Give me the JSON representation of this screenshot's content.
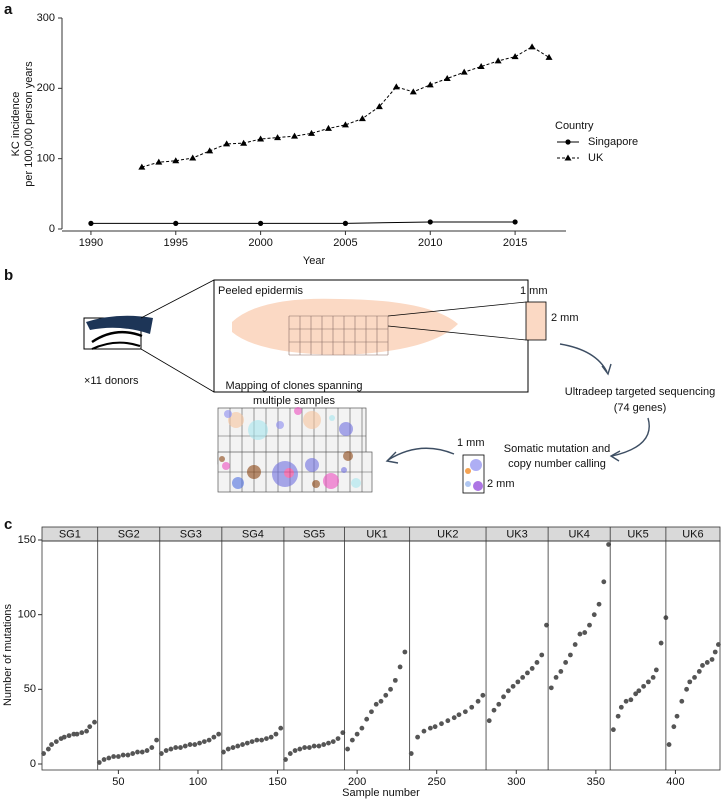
{
  "panel_labels": [
    "a",
    "b",
    "c"
  ],
  "chart_data": [
    {
      "type": "line",
      "xlabel": "Year",
      "ylabel": [
        "KC incidence",
        "per 100,000 person years"
      ],
      "xlim": [
        1988,
        2018
      ],
      "xticks": [
        1990,
        1995,
        2000,
        2005,
        2010,
        2015
      ],
      "ylim": [
        0,
        300
      ],
      "yticks": [
        0,
        100,
        200,
        300
      ],
      "legend_title": "Country",
      "legend": "right",
      "series": [
        {
          "name": "Singapore",
          "color": "#000000",
          "linestyle": "solid",
          "marker": "circle",
          "x": [
            1990,
            1995,
            2000,
            2005,
            2010,
            2015
          ],
          "values": [
            8,
            8,
            8,
            8,
            10,
            10
          ]
        },
        {
          "name": "UK",
          "color": "#000000",
          "linestyle": "dashed",
          "marker": "triangle",
          "x": [
            1993,
            1994,
            1995,
            1996,
            1997,
            1998,
            1999,
            2000,
            2001,
            2002,
            2003,
            2004,
            2005,
            2006,
            2007,
            2008,
            2009,
            2010,
            2011,
            2012,
            2013,
            2014,
            2015,
            2016,
            2017
          ],
          "values": [
            88,
            95,
            97,
            101,
            111,
            121,
            122,
            128,
            130,
            132,
            136,
            143,
            148,
            157,
            174,
            202,
            195,
            205,
            214,
            223,
            231,
            239,
            245,
            259,
            244
          ]
        }
      ]
    },
    {
      "type": "scatter",
      "xlabel": "Sample number",
      "ylabel": "Number of mutations",
      "xlim": [
        2,
        428
      ],
      "xticks": [
        50,
        100,
        150,
        200,
        250,
        300,
        350,
        400
      ],
      "ylim": [
        0,
        150
      ],
      "yticks": [
        0,
        50,
        100,
        150
      ],
      "color": "#555555",
      "facets": [
        {
          "name": "SG1",
          "xlim": [
            2,
            37
          ],
          "x": [
            3,
            6,
            8,
            11,
            14,
            16,
            19,
            22,
            24,
            27,
            30,
            32,
            35
          ],
          "values": [
            7,
            10,
            13,
            15,
            17,
            18,
            19,
            20,
            20,
            21,
            22,
            25,
            28
          ]
        },
        {
          "name": "SG2",
          "xlim": [
            37,
            76
          ],
          "x": [
            38,
            41,
            44,
            47,
            50,
            53,
            56,
            59,
            62,
            65,
            68,
            71,
            74
          ],
          "values": [
            1,
            3,
            4,
            5,
            5,
            6,
            6,
            7,
            8,
            8,
            9,
            11,
            16
          ]
        },
        {
          "name": "SG3",
          "xlim": [
            76,
            115
          ],
          "x": [
            77,
            80,
            83,
            86,
            89,
            92,
            95,
            98,
            101,
            104,
            107,
            110,
            113
          ],
          "values": [
            7,
            9,
            10,
            11,
            11,
            12,
            13,
            13,
            14,
            15,
            16,
            18,
            20
          ]
        },
        {
          "name": "SG4",
          "xlim": [
            115,
            154
          ],
          "x": [
            116,
            119,
            122,
            125,
            128,
            131,
            134,
            137,
            140,
            143,
            146,
            149,
            152
          ],
          "values": [
            8,
            10,
            11,
            12,
            13,
            14,
            15,
            16,
            16,
            17,
            18,
            20,
            24
          ]
        },
        {
          "name": "SG5",
          "xlim": [
            154,
            192
          ],
          "x": [
            155,
            158,
            161,
            164,
            167,
            170,
            173,
            176,
            179,
            182,
            185,
            188,
            191
          ],
          "values": [
            3,
            7,
            9,
            10,
            11,
            11,
            12,
            12,
            13,
            14,
            15,
            17,
            21
          ]
        },
        {
          "name": "UK1",
          "xlim": [
            192,
            233
          ],
          "x": [
            194,
            197,
            200,
            203,
            206,
            209,
            212,
            215,
            218,
            221,
            224,
            227,
            230
          ],
          "values": [
            10,
            16,
            20,
            24,
            30,
            35,
            40,
            42,
            46,
            50,
            56,
            65,
            75
          ]
        },
        {
          "name": "UK2",
          "xlim": [
            233,
            281
          ],
          "x": [
            234,
            238,
            242,
            246,
            249,
            253,
            257,
            261,
            264,
            268,
            272,
            276,
            279
          ],
          "values": [
            7,
            18,
            22,
            24,
            25,
            27,
            29,
            31,
            33,
            35,
            38,
            42,
            46
          ]
        },
        {
          "name": "UK3",
          "xlim": [
            281,
            320
          ],
          "x": [
            283,
            286,
            289,
            292,
            295,
            298,
            301,
            304,
            307,
            310,
            313,
            316,
            319
          ],
          "values": [
            29,
            36,
            40,
            45,
            49,
            52,
            55,
            58,
            61,
            64,
            68,
            73,
            93
          ]
        },
        {
          "name": "UK4",
          "xlim": [
            320,
            359
          ],
          "x": [
            322,
            325,
            328,
            331,
            334,
            337,
            340,
            343,
            346,
            349,
            352,
            355,
            358
          ],
          "values": [
            51,
            58,
            62,
            68,
            73,
            80,
            87,
            88,
            93,
            100,
            107,
            122,
            147
          ]
        },
        {
          "name": "UK5",
          "xlim": [
            359,
            394
          ],
          "x": [
            361,
            364,
            366,
            369,
            372,
            375,
            377,
            380,
            383,
            386,
            388,
            391,
            394
          ],
          "values": [
            23,
            32,
            38,
            42,
            43,
            47,
            49,
            52,
            55,
            58,
            63,
            81,
            98
          ]
        },
        {
          "name": "UK6",
          "xlim": [
            394,
            428
          ],
          "x": [
            396,
            399,
            401,
            404,
            407,
            409,
            412,
            415,
            417,
            420,
            423,
            425,
            427
          ],
          "values": [
            13,
            25,
            32,
            42,
            50,
            55,
            58,
            62,
            66,
            68,
            70,
            75,
            80
          ]
        }
      ]
    }
  ],
  "diagram": {
    "peeled": "Peeled epidermis",
    "donors": "×11 donors",
    "sample_w": "1 mm",
    "sample_h": "2 mm",
    "sequencing": [
      "Ultradeep targeted sequencing",
      "(74 genes)"
    ],
    "calling": [
      "Somatic mutation and",
      "copy number calling"
    ],
    "sample2_w": "1 mm",
    "sample2_h": "2 mm",
    "mapping": [
      "Mapping of clones spanning",
      "multiple samples"
    ]
  }
}
